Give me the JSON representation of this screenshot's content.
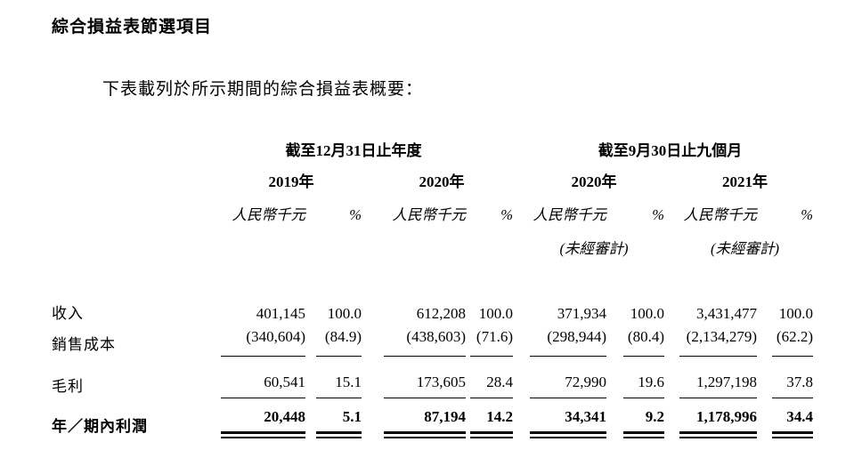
{
  "document": {
    "heading": "綜合損益表節選項目",
    "intro": "下表載列於所示期間的綜合損益表概要："
  },
  "table": {
    "group_headers": {
      "annual": "截至12月31日止年度",
      "nine_months": "截至9月30日止九個月"
    },
    "year_headers": [
      "2019年",
      "2020年",
      "2020年",
      "2021年"
    ],
    "unit_label": "人民幣千元",
    "percent_label": "%",
    "unaudited_label": "(未經審計)",
    "rows": [
      {
        "label": "收入",
        "values": [
          "401,145",
          "100.0",
          "612,208",
          "100.0",
          "371,934",
          "100.0",
          "3,431,477",
          "100.0"
        ]
      },
      {
        "label": "銷售成本",
        "values": [
          "(340,604)",
          "(84.9)",
          "(438,603)",
          "(71.6)",
          "(298,944)",
          "(80.4)",
          "(2,134,279)",
          "(62.2)"
        ]
      },
      {
        "label": "毛利",
        "values": [
          "60,541",
          "15.1",
          "173,605",
          "28.4",
          "72,990",
          "19.6",
          "1,297,198",
          "37.8"
        ]
      },
      {
        "label": "年／期內利潤",
        "values": [
          "20,448",
          "5.1",
          "87,194",
          "14.2",
          "34,341",
          "9.2",
          "1,178,996",
          "34.4"
        ]
      }
    ]
  }
}
